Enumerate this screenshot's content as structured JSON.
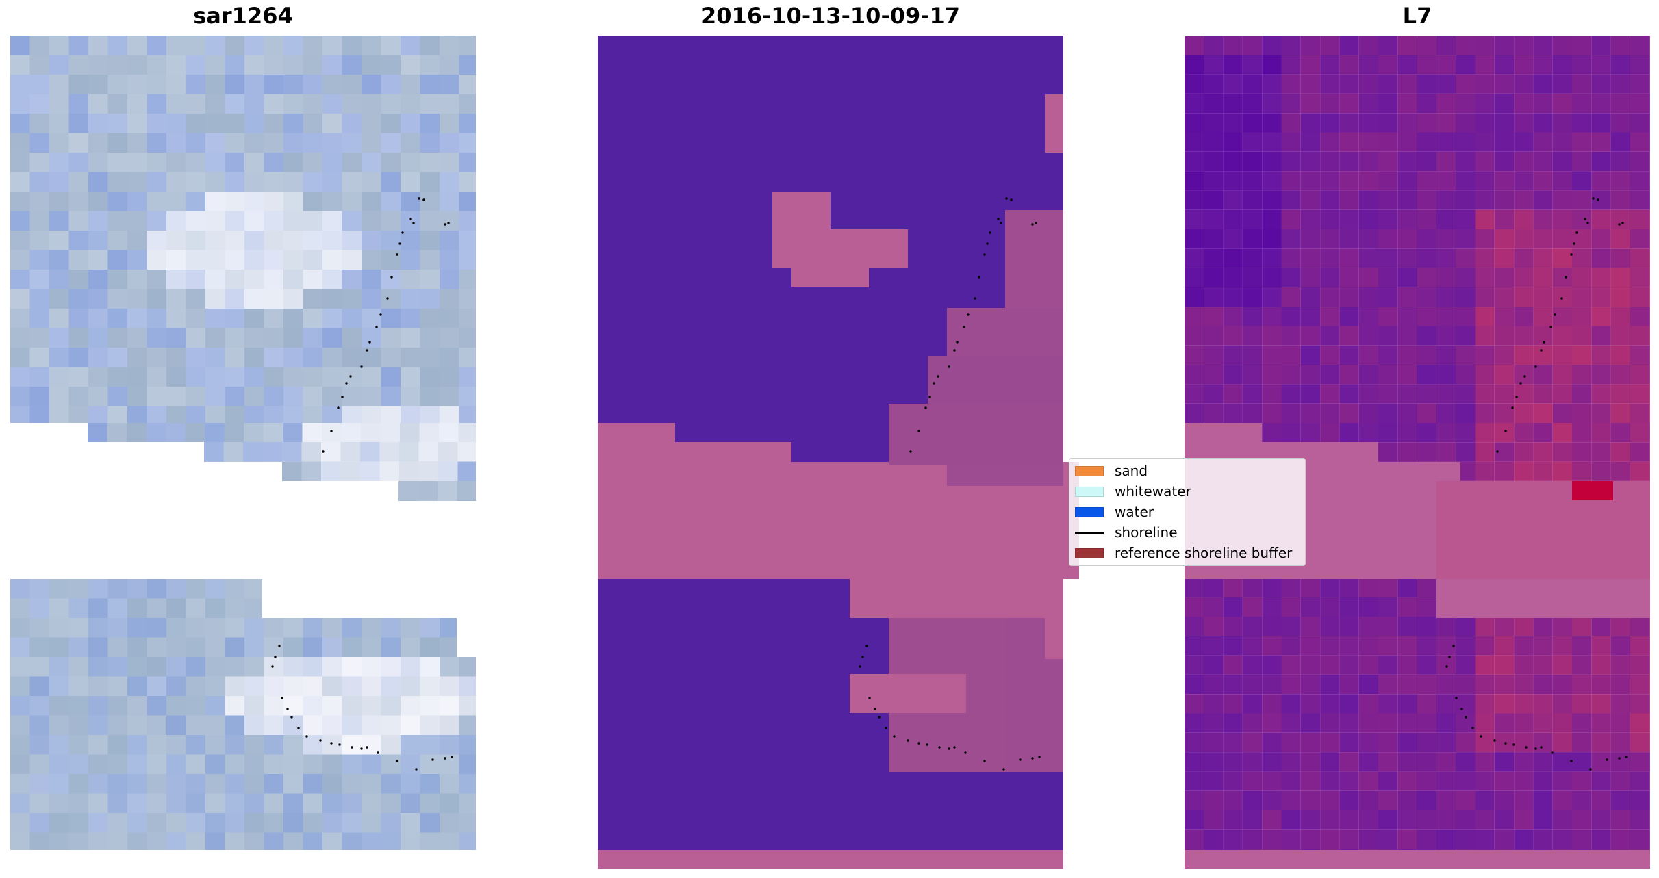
{
  "panels": [
    {
      "title": "sar1264",
      "kind": "rgb"
    },
    {
      "title": "2016-10-13-10-09-17",
      "kind": "classified"
    },
    {
      "title": "L7",
      "kind": "index"
    }
  ],
  "legend": {
    "items": [
      {
        "label": "sand",
        "type": "patch",
        "color": "#f28a3a"
      },
      {
        "label": "whitewater",
        "type": "patch",
        "color": "#cdf8f8"
      },
      {
        "label": "water",
        "type": "patch",
        "color": "#0957e8"
      },
      {
        "label": "shoreline",
        "type": "line",
        "color": "#000000"
      },
      {
        "label": "reference shoreline buffer",
        "type": "patch",
        "color": "#9b3535"
      }
    ]
  },
  "colors": {
    "rgb_base": "#95a9d4",
    "classified_water": "#5222a0",
    "classified_buffer": "#b95f96",
    "index_base": "#7a2aa2",
    "index_buffer": "#b9609a"
  }
}
